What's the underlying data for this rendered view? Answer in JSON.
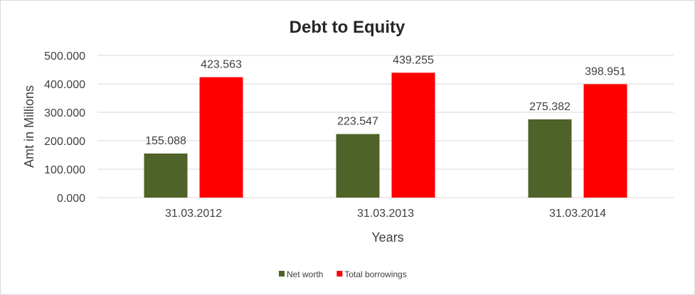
{
  "chart_data": {
    "type": "bar",
    "title": "Debt to Equity",
    "xlabel": "Years",
    "ylabel": "Amt in Millions",
    "categories": [
      "31.03.2012",
      "31.03.2013",
      "31.03.2014"
    ],
    "series": [
      {
        "name": "Net worth",
        "color": "#4F6228",
        "values": [
          155.088,
          223.547,
          275.382
        ],
        "labels": [
          "155.088",
          "223.547",
          "275.382"
        ]
      },
      {
        "name": "Total borrowings",
        "color": "#FF0000",
        "values": [
          423.563,
          439.255,
          398.951
        ],
        "labels": [
          "423.563",
          "439.255",
          "398.951"
        ]
      }
    ],
    "ylim": [
      0,
      500
    ],
    "yticks": [
      "0.000",
      "100.000",
      "200.000",
      "300.000",
      "400.000",
      "500.000"
    ],
    "grid": true,
    "legend": "bottom"
  }
}
